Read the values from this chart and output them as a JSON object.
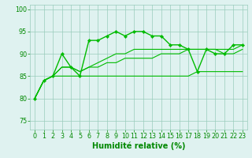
{
  "series_main": {
    "x": [
      0,
      1,
      2,
      3,
      4,
      5,
      6,
      7,
      8,
      9,
      10,
      11,
      12,
      13,
      14,
      15,
      16,
      17,
      18,
      19,
      20,
      21,
      22,
      23
    ],
    "y": [
      80,
      84,
      85,
      90,
      87,
      85,
      93,
      93,
      94,
      95,
      94,
      95,
      95,
      94,
      94,
      92,
      92,
      91,
      86,
      91,
      90,
      90,
      92,
      92
    ]
  },
  "series_low": {
    "x": [
      0,
      1,
      2,
      3,
      4,
      5,
      6,
      7,
      8,
      9,
      10,
      11,
      12,
      13,
      14,
      15,
      16,
      17,
      18,
      19,
      20,
      21,
      22,
      23
    ],
    "y": [
      80,
      84,
      85,
      85,
      85,
      85,
      85,
      85,
      85,
      85,
      85,
      85,
      85,
      85,
      85,
      85,
      85,
      85,
      86,
      86,
      86,
      86,
      86,
      86
    ]
  },
  "series_mid1": {
    "x": [
      0,
      1,
      2,
      3,
      4,
      5,
      6,
      7,
      8,
      9,
      10,
      11,
      12,
      13,
      14,
      15,
      16,
      17,
      18,
      19,
      20,
      21,
      22,
      23
    ],
    "y": [
      80,
      84,
      85,
      87,
      87,
      86,
      87,
      87,
      88,
      88,
      89,
      89,
      89,
      89,
      90,
      90,
      90,
      91,
      91,
      91,
      91,
      90,
      90,
      91
    ]
  },
  "series_mid2": {
    "x": [
      0,
      1,
      2,
      3,
      4,
      5,
      6,
      7,
      8,
      9,
      10,
      11,
      12,
      13,
      14,
      15,
      16,
      17,
      18,
      19,
      20,
      21,
      22,
      23
    ],
    "y": [
      80,
      84,
      85,
      87,
      87,
      86,
      87,
      88,
      89,
      90,
      90,
      91,
      91,
      91,
      91,
      91,
      91,
      91,
      91,
      91,
      91,
      91,
      91,
      92
    ]
  },
  "xlim": [
    -0.5,
    23.5
  ],
  "ylim": [
    73,
    101
  ],
  "yticks": [
    75,
    80,
    85,
    90,
    95,
    100
  ],
  "xticks": [
    0,
    1,
    2,
    3,
    4,
    5,
    6,
    7,
    8,
    9,
    10,
    11,
    12,
    13,
    14,
    15,
    16,
    17,
    18,
    19,
    20,
    21,
    22,
    23
  ],
  "xlabel": "Humidité relative (%)",
  "background_color": "#dff2f0",
  "grid_color": "#99ccbb",
  "line_color": "#00bb00",
  "xlabel_color": "#008800",
  "tick_color": "#008800",
  "xlabel_fontsize": 7.0,
  "tick_fontsize": 5.8,
  "marker_size": 2.2,
  "line_width": 1.0
}
